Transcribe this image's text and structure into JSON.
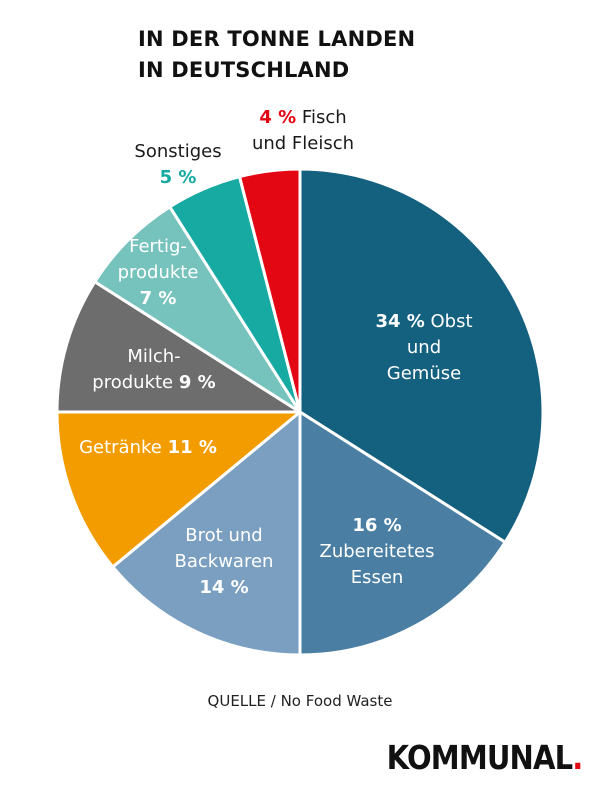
{
  "title": {
    "line1": "IN DER TONNE LANDEN",
    "line2": "IN DEUTSCHLAND"
  },
  "source": "QUELLE / No Food Waste",
  "brand": {
    "name": "KOMMUNAL",
    "dot": ".",
    "dot_color": "#e30613"
  },
  "chart_data": {
    "type": "pie",
    "title": "IN DER TONNE LANDEN IN DEUTSCHLAND",
    "slices": [
      {
        "pct_text": "34 %",
        "value": 34,
        "color": "#13607f",
        "label_lines": [
          [
            {
              "t": "34 %",
              "b": true
            },
            {
              "t": " Obst",
              "b": false
            }
          ],
          [
            {
              "t": "und",
              "b": false
            }
          ],
          [
            {
              "t": "Gemüse",
              "b": false
            }
          ]
        ]
      },
      {
        "pct_text": "16 %",
        "value": 16,
        "color": "#4a7fa3",
        "label_lines": [
          [
            {
              "t": "16 %",
              "b": true
            }
          ],
          [
            {
              "t": "Zubereitetes",
              "b": false
            }
          ],
          [
            {
              "t": "Essen",
              "b": false
            }
          ]
        ]
      },
      {
        "pct_text": "14 %",
        "value": 14,
        "color": "#7a9fc0",
        "label_lines": [
          [
            {
              "t": "Brot und",
              "b": false
            }
          ],
          [
            {
              "t": "Backwaren",
              "b": false
            }
          ],
          [
            {
              "t": "14 %",
              "b": true
            }
          ]
        ]
      },
      {
        "pct_text": "11 %",
        "value": 11,
        "color": "#f29c00",
        "label_lines": [
          [
            {
              "t": "Getränke ",
              "b": false
            },
            {
              "t": "11 %",
              "b": true
            }
          ]
        ]
      },
      {
        "pct_text": "9 %",
        "value": 9,
        "color": "#6d6d6d",
        "label_lines": [
          [
            {
              "t": "Milch-",
              "b": false
            }
          ],
          [
            {
              "t": "produkte ",
              "b": false
            },
            {
              "t": "9 %",
              "b": true
            }
          ]
        ]
      },
      {
        "pct_text": "7 %",
        "value": 7,
        "color": "#76c2bc",
        "label_lines": [
          [
            {
              "t": "Fertig-",
              "b": false
            }
          ],
          [
            {
              "t": "produkte",
              "b": false
            }
          ],
          [
            {
              "t": "7 %",
              "b": true
            }
          ]
        ]
      },
      {
        "pct_text": "5 %",
        "value": 5,
        "color": "#16aaa3",
        "label_lines": [
          [
            {
              "t": "Sonstiges",
              "b": false
            }
          ],
          [
            {
              "t": "5 %",
              "b": true
            }
          ]
        ]
      },
      {
        "pct_text": "4 %",
        "value": 4,
        "color": "#e30613",
        "label_lines": [
          [
            {
              "t": "4 %",
              "b": true
            },
            {
              "t": " Fisch",
              "b": false
            }
          ],
          [
            {
              "t": "und Fleisch",
              "b": false
            }
          ]
        ]
      }
    ]
  }
}
